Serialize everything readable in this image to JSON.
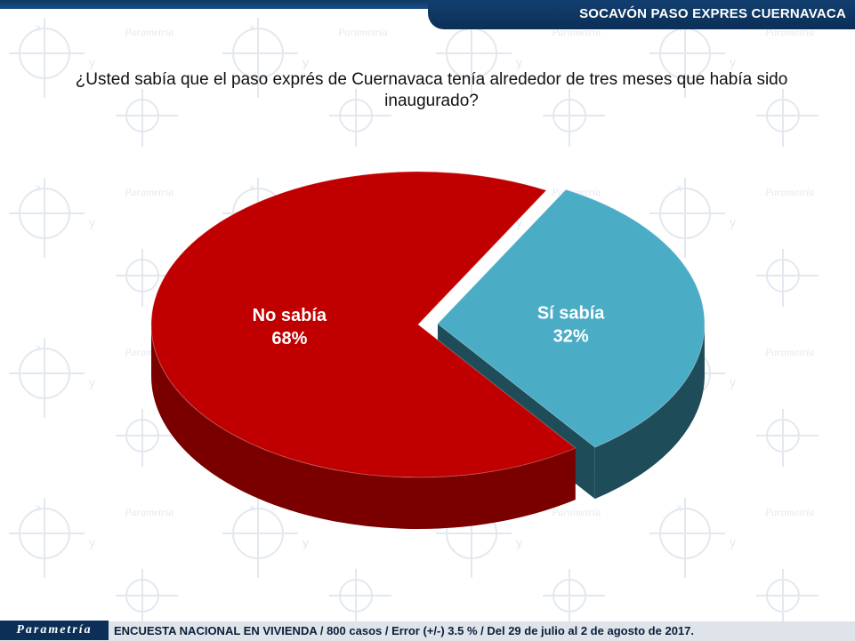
{
  "header": {
    "title": "SOCAVÓN PASO EXPRES CUERNAVACA"
  },
  "footer": {
    "logo": "Parametría",
    "note": "ENCUESTA NACIONAL EN VIVIENDA / 800 casos / Error (+/-) 3.5 % / Del 29 de julio al 2 de agosto de 2017."
  },
  "chart_data": {
    "type": "pie",
    "title": "¿Usted sabía que el paso exprés de Cuernavaca tenía alrededor de tres meses que había sido inaugurado?",
    "labels": [
      "No sabía",
      "Sí sabía"
    ],
    "values": [
      68,
      32
    ],
    "value_labels": [
      "68%",
      "32%"
    ],
    "colors": [
      "#c00000",
      "#4bacc6"
    ],
    "side_colors": [
      "#7a0000",
      "#1e4c59"
    ],
    "exploded": "Sí sabía",
    "style": "3d"
  }
}
